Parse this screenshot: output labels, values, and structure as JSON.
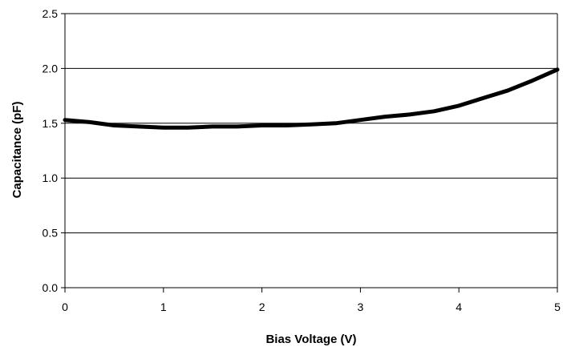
{
  "chart_data": {
    "type": "line",
    "title": "",
    "xlabel": "Bias Voltage (V)",
    "ylabel": "Capacitance (pF)",
    "xlim": [
      0,
      5
    ],
    "ylim": [
      0,
      2.5
    ],
    "xticks": [
      "0",
      "1",
      "2",
      "3",
      "4",
      "5"
    ],
    "yticks": [
      "0.0",
      "0.5",
      "1.0",
      "1.5",
      "2.0",
      "2.5"
    ],
    "grid": "horizontal",
    "legend": "none",
    "series": [
      {
        "color": "#000000",
        "x": [
          0,
          0.25,
          0.5,
          0.75,
          1.0,
          1.25,
          1.5,
          1.75,
          2.0,
          2.25,
          2.5,
          2.75,
          3.0,
          3.25,
          3.5,
          3.75,
          4.0,
          4.25,
          4.5,
          4.75,
          5.0
        ],
        "y": [
          1.53,
          1.51,
          1.48,
          1.47,
          1.46,
          1.46,
          1.47,
          1.47,
          1.48,
          1.48,
          1.49,
          1.5,
          1.53,
          1.56,
          1.58,
          1.61,
          1.66,
          1.73,
          1.8,
          1.89,
          1.99
        ]
      }
    ]
  }
}
